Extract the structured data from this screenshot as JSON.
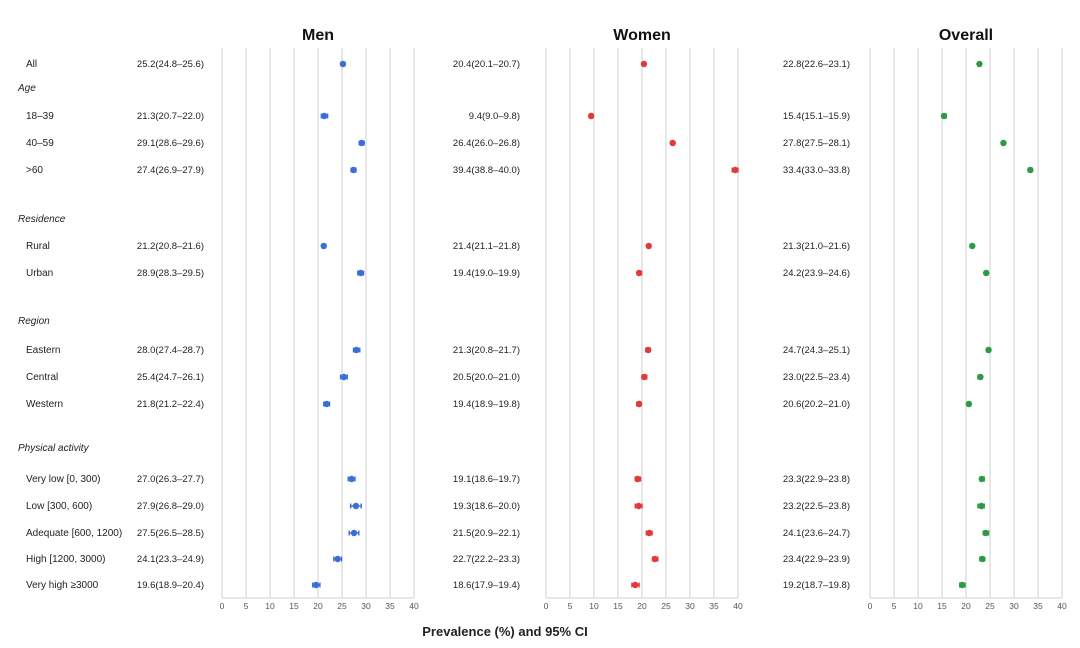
{
  "chart_data": {
    "type": "scatter",
    "subtype": "forest-plot",
    "xlabel": "Prevalence (%) and 95% CI",
    "xlim": [
      0,
      40
    ],
    "xticks": [
      0,
      5,
      10,
      15,
      20,
      25,
      30,
      35,
      40
    ],
    "grid": true,
    "rows": [
      {
        "kind": "item",
        "label": "All"
      },
      {
        "kind": "section",
        "label": "Age"
      },
      {
        "kind": "item",
        "label": "18–39"
      },
      {
        "kind": "item",
        "label": "40–59"
      },
      {
        "kind": "item",
        "label": ">60"
      },
      {
        "kind": "section",
        "label": "Residence"
      },
      {
        "kind": "item",
        "label": "Rural"
      },
      {
        "kind": "item",
        "label": "Urban"
      },
      {
        "kind": "section",
        "label": "Region"
      },
      {
        "kind": "item",
        "label": "Eastern"
      },
      {
        "kind": "item",
        "label": "Central"
      },
      {
        "kind": "item",
        "label": "Western"
      },
      {
        "kind": "section",
        "label": "Physical activity"
      },
      {
        "kind": "item",
        "label": "Very low [0, 300)"
      },
      {
        "kind": "item",
        "label": "Low [300, 600)"
      },
      {
        "kind": "item",
        "label": "Adequate [600, 1200)"
      },
      {
        "kind": "item",
        "label": "High [1200, 3000)"
      },
      {
        "kind": "item",
        "label": "Very high ≥3000"
      }
    ],
    "panels": [
      {
        "title": "Men",
        "color": "#3a6fd8",
        "points": [
          {
            "value": 25.2,
            "lo": 24.8,
            "hi": 25.6,
            "text": "25.2(24.8–25.6)"
          },
          {
            "value": 21.3,
            "lo": 20.7,
            "hi": 22.0,
            "text": "21.3(20.7–22.0)"
          },
          {
            "value": 29.1,
            "lo": 28.6,
            "hi": 29.6,
            "text": "29.1(28.6–29.6)"
          },
          {
            "value": 27.4,
            "lo": 26.9,
            "hi": 27.9,
            "text": "27.4(26.9–27.9)"
          },
          {
            "value": 21.2,
            "lo": 20.8,
            "hi": 21.6,
            "text": "21.2(20.8–21.6)"
          },
          {
            "value": 28.9,
            "lo": 28.3,
            "hi": 29.5,
            "text": "28.9(28.3–29.5)"
          },
          {
            "value": 28.0,
            "lo": 27.4,
            "hi": 28.7,
            "text": "28.0(27.4–28.7)"
          },
          {
            "value": 25.4,
            "lo": 24.7,
            "hi": 26.1,
            "text": "25.4(24.7–26.1)"
          },
          {
            "value": 21.8,
            "lo": 21.2,
            "hi": 22.4,
            "text": "21.8(21.2–22.4)"
          },
          {
            "value": 27.0,
            "lo": 26.3,
            "hi": 27.7,
            "text": "27.0(26.3–27.7)"
          },
          {
            "value": 27.9,
            "lo": 26.8,
            "hi": 29.0,
            "text": "27.9(26.8–29.0)"
          },
          {
            "value": 27.5,
            "lo": 26.5,
            "hi": 28.5,
            "text": "27.5(26.5–28.5)"
          },
          {
            "value": 24.1,
            "lo": 23.3,
            "hi": 24.9,
            "text": "24.1(23.3–24.9)"
          },
          {
            "value": 19.6,
            "lo": 18.9,
            "hi": 20.4,
            "text": "19.6(18.9–20.4)"
          }
        ]
      },
      {
        "title": "Women",
        "color": "#e03a3a",
        "points": [
          {
            "value": 20.4,
            "lo": 20.1,
            "hi": 20.7,
            "text": "20.4(20.1–20.7)"
          },
          {
            "value": 9.4,
            "lo": 9.0,
            "hi": 9.8,
            "text": "9.4(9.0–9.8)"
          },
          {
            "value": 26.4,
            "lo": 26.0,
            "hi": 26.8,
            "text": "26.4(26.0–26.8)"
          },
          {
            "value": 39.4,
            "lo": 38.8,
            "hi": 40.0,
            "text": "39.4(38.8–40.0)"
          },
          {
            "value": 21.4,
            "lo": 21.1,
            "hi": 21.8,
            "text": "21.4(21.1–21.8)"
          },
          {
            "value": 19.4,
            "lo": 19.0,
            "hi": 19.9,
            "text": "19.4(19.0–19.9)"
          },
          {
            "value": 21.3,
            "lo": 20.8,
            "hi": 21.7,
            "text": "21.3(20.8–21.7)"
          },
          {
            "value": 20.5,
            "lo": 20.0,
            "hi": 21.0,
            "text": "20.5(20.0–21.0)"
          },
          {
            "value": 19.4,
            "lo": 18.9,
            "hi": 19.8,
            "text": "19.4(18.9–19.8)"
          },
          {
            "value": 19.1,
            "lo": 18.6,
            "hi": 19.7,
            "text": "19.1(18.6–19.7)"
          },
          {
            "value": 19.3,
            "lo": 18.6,
            "hi": 20.0,
            "text": "19.3(18.6–20.0)"
          },
          {
            "value": 21.5,
            "lo": 20.9,
            "hi": 22.1,
            "text": "21.5(20.9–22.1)"
          },
          {
            "value": 22.7,
            "lo": 22.2,
            "hi": 23.3,
            "text": "22.7(22.2–23.3)"
          },
          {
            "value": 18.6,
            "lo": 17.9,
            "hi": 19.4,
            "text": "18.6(17.9–19.4)"
          }
        ]
      },
      {
        "title": "Overall",
        "color": "#2e9a44",
        "points": [
          {
            "value": 22.8,
            "lo": 22.6,
            "hi": 23.1,
            "text": "22.8(22.6–23.1)"
          },
          {
            "value": 15.4,
            "lo": 15.1,
            "hi": 15.9,
            "text": "15.4(15.1–15.9)"
          },
          {
            "value": 27.8,
            "lo": 27.5,
            "hi": 28.1,
            "text": "27.8(27.5–28.1)"
          },
          {
            "value": 33.4,
            "lo": 33.0,
            "hi": 33.8,
            "text": "33.4(33.0–33.8)"
          },
          {
            "value": 21.3,
            "lo": 21.0,
            "hi": 21.6,
            "text": "21.3(21.0–21.6)"
          },
          {
            "value": 24.2,
            "lo": 23.9,
            "hi": 24.6,
            "text": "24.2(23.9–24.6)"
          },
          {
            "value": 24.7,
            "lo": 24.3,
            "hi": 25.1,
            "text": "24.7(24.3–25.1)"
          },
          {
            "value": 23.0,
            "lo": 22.5,
            "hi": 23.4,
            "text": "23.0(22.5–23.4)"
          },
          {
            "value": 20.6,
            "lo": 20.2,
            "hi": 21.0,
            "text": "20.6(20.2–21.0)"
          },
          {
            "value": 23.3,
            "lo": 22.9,
            "hi": 23.8,
            "text": "23.3(22.9–23.8)"
          },
          {
            "value": 23.2,
            "lo": 22.5,
            "hi": 23.8,
            "text": "23.2(22.5–23.8)"
          },
          {
            "value": 24.1,
            "lo": 23.6,
            "hi": 24.7,
            "text": "24.1(23.6–24.7)"
          },
          {
            "value": 23.4,
            "lo": 22.9,
            "hi": 23.9,
            "text": "23.4(22.9–23.9)"
          },
          {
            "value": 19.2,
            "lo": 18.7,
            "hi": 19.8,
            "text": "19.2(18.7–19.8)"
          }
        ]
      }
    ]
  }
}
